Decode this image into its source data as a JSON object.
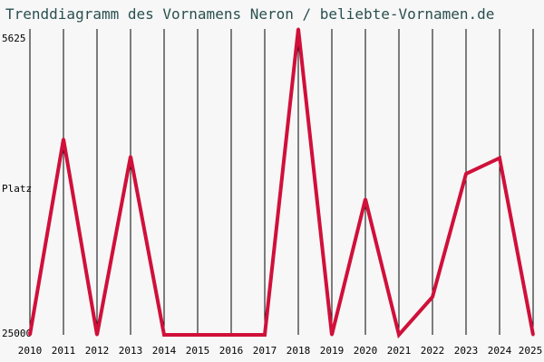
{
  "title": "Trenddiagramm des Vornamens Neron / beliebte-Vornamen.de",
  "chart_data": {
    "type": "line",
    "title": "Trenddiagramm des Vornamens Neron / beliebte-Vornamen.de",
    "ylabel": "Platz",
    "y_tick_labels": [
      "5625",
      "25000"
    ],
    "ylim": [
      5625,
      25000
    ],
    "y_inverted": true,
    "x": [
      "2010",
      "2011",
      "2012",
      "2013",
      "2014",
      "2015",
      "2016",
      "2017",
      "2018",
      "2019",
      "2020",
      "2021",
      "2022",
      "2023",
      "2024",
      "2025"
    ],
    "values": [
      25000,
      12600,
      25000,
      13700,
      25000,
      25000,
      25000,
      25000,
      5625,
      25000,
      16400,
      25000,
      22600,
      14800,
      13800,
      25000
    ],
    "grid": "vertical",
    "series_color": "#d0103a"
  }
}
